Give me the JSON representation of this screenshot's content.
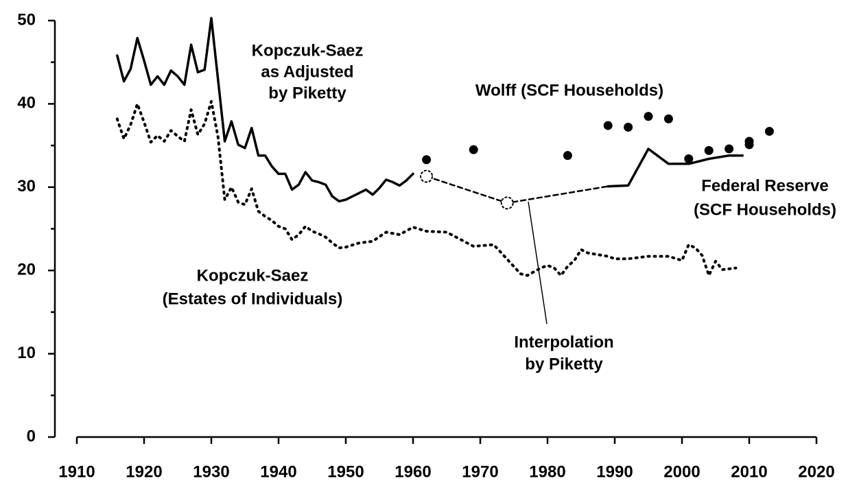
{
  "chart_data": {
    "type": "line",
    "xlim": [
      1910,
      2020
    ],
    "xticks": [
      1910,
      1920,
      1930,
      1940,
      1950,
      1960,
      1970,
      1980,
      1990,
      2000,
      2010,
      2020
    ],
    "ylim": [
      0,
      50
    ],
    "yticks": [
      0,
      10,
      20,
      30,
      40,
      50
    ],
    "yminorticks": [
      5,
      15,
      25,
      35,
      45
    ],
    "grid": false,
    "series": [
      {
        "name": [
          "Kopczuk-Saez",
          "as Adjusted",
          "by Piketty"
        ],
        "color": "#000000",
        "style": "solid",
        "x": [
          1916,
          1917,
          1918,
          1919,
          1920,
          1921,
          1922,
          1923,
          1924,
          1925,
          1926,
          1927,
          1928,
          1929,
          1930,
          1932,
          1933,
          1934,
          1935,
          1936,
          1937,
          1938,
          1939,
          1940,
          1941,
          1942,
          1943,
          1944,
          1945,
          1946,
          1947,
          1948,
          1949,
          1950,
          1951,
          1952,
          1953,
          1954,
          1955,
          1956,
          1957,
          1958,
          1959,
          1960
        ],
        "values": [
          45.8,
          42.7,
          44.2,
          47.9,
          45.2,
          42.3,
          43.3,
          42.3,
          44,
          43.3,
          42.3,
          47.1,
          43.8,
          44.1,
          50.3,
          35.5,
          37.9,
          35.1,
          34.7,
          37.1,
          33.8,
          33.8,
          32.5,
          31.6,
          31.6,
          29.7,
          30.3,
          31.8,
          30.8,
          30.6,
          30.3,
          28.9,
          28.3,
          28.5,
          28.9,
          29.3,
          29.7,
          29.1,
          29.9,
          30.9,
          30.6,
          30.2,
          30.8,
          31.6
        ]
      },
      {
        "name": [
          "Kopczuk-Saez",
          "(Estates of Individuals)"
        ],
        "color": "#000000",
        "style": "dotted",
        "x": [
          1916,
          1917,
          1918,
          1919,
          1920,
          1921,
          1922,
          1923,
          1924,
          1925,
          1926,
          1927,
          1928,
          1929,
          1930,
          1931,
          1932,
          1933,
          1934,
          1935,
          1936,
          1937,
          1938,
          1939,
          1940,
          1941,
          1942,
          1943,
          1944,
          1945,
          1946,
          1947,
          1948,
          1949,
          1950,
          1952,
          1954,
          1956,
          1958,
          1960,
          1962,
          1965,
          1969,
          1972,
          1976,
          1977,
          1979,
          1980,
          1981,
          1982,
          1983,
          1984,
          1985,
          1986,
          1989,
          1990,
          1992,
          1995,
          1998,
          2000,
          2001,
          2002,
          2003,
          2004,
          2005,
          2006,
          2008
        ],
        "values": [
          38.2,
          35.8,
          37.5,
          40,
          37.8,
          35.4,
          36.2,
          35.5,
          36.8,
          36.1,
          35.5,
          39.3,
          36.3,
          37.6,
          40.3,
          36,
          28.5,
          30,
          28.2,
          27.9,
          29.8,
          27.1,
          26.5,
          26,
          25.3,
          25,
          23.7,
          24.3,
          25.3,
          24.7,
          24.4,
          24,
          23.3,
          22.7,
          22.8,
          23.3,
          23.5,
          24.6,
          24.3,
          25.2,
          24.7,
          24.6,
          22.9,
          23.1,
          19.6,
          19.4,
          20.3,
          20.6,
          20.3,
          19.4,
          20.5,
          21.2,
          22.5,
          22.1,
          21.7,
          21.4,
          21.4,
          21.7,
          21.7,
          21.2,
          23.1,
          22.7,
          21.8,
          19.4,
          21.1,
          20.1,
          20.3
        ]
      },
      {
        "name": [
          "Interpolation",
          "by Piketty"
        ],
        "color": "#000000",
        "style": "dashed",
        "x": [
          1962,
          1974,
          1989
        ],
        "values": [
          31.3,
          28.1,
          30.1
        ]
      },
      {
        "name": [
          "Federal Reserve",
          "(SCF Households)"
        ],
        "color": "#000000",
        "style": "solid",
        "x": [
          1989,
          1992,
          1995,
          1998,
          2001,
          2004,
          2007,
          2009
        ],
        "values": [
          30.1,
          30.2,
          34.6,
          32.8,
          32.8,
          33.4,
          33.8,
          33.8
        ]
      },
      {
        "name": [
          "Wolff (SCF Households)"
        ],
        "color": "#000000",
        "style": "markers",
        "x": [
          1962,
          1969,
          1983,
          1989,
          1992,
          1995,
          1998,
          2001,
          2004,
          2007,
          2010,
          2010,
          2013
        ],
        "values": [
          33.3,
          34.5,
          33.8,
          37.4,
          37.2,
          38.5,
          38.2,
          33.4,
          34.4,
          34.6,
          35.5,
          35.1,
          36.7
        ]
      }
    ]
  }
}
